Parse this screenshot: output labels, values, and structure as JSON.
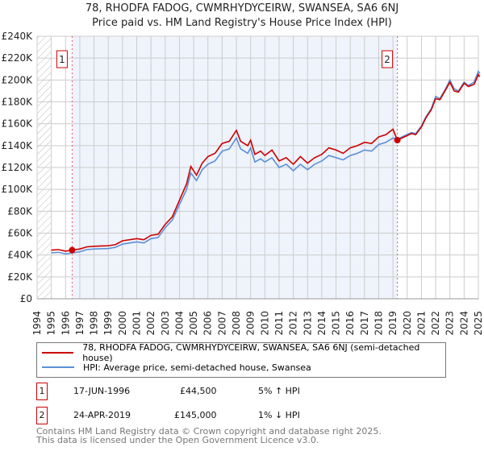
{
  "chart_data": {
    "type": "line",
    "title": "78, RHODFA FADOG, CWMRHYDYCEIRW, SWANSEA, SA6 6NJ",
    "subtitle": "Price paid vs. HM Land Registry's House Price Index (HPI)",
    "xlim": [
      1994,
      2025
    ],
    "ylim": [
      0,
      240000
    ],
    "x_ticks": [
      "1994",
      "1995",
      "1996",
      "1997",
      "1998",
      "1999",
      "2000",
      "2001",
      "2002",
      "2003",
      "2004",
      "2005",
      "2006",
      "2007",
      "2008",
      "2009",
      "2010",
      "2011",
      "2012",
      "2013",
      "2014",
      "2015",
      "2016",
      "2017",
      "2018",
      "2019",
      "2020",
      "2021",
      "2022",
      "2023",
      "2024",
      "2025"
    ],
    "y_ticks": [
      "£0",
      "£20K",
      "£40K",
      "£60K",
      "£80K",
      "£100K",
      "£120K",
      "£140K",
      "£160K",
      "£180K",
      "£200K",
      "£220K",
      "£240K"
    ],
    "grid": true,
    "series": [
      {
        "name": "78, RHODFA FADOG, CWMRHYDYCEIRW, SWANSEA, SA6 6NJ (semi-detached house)",
        "color": "#cc0000",
        "x": [
          1995,
          1995.5,
          1996,
          1996.46,
          1997,
          1997.5,
          1998,
          1999,
          1999.5,
          2000,
          2001,
          2001.5,
          2002,
          2002.5,
          2003,
          2003.5,
          2004,
          2004.5,
          2004.8,
          2005.2,
          2005.6,
          2006,
          2006.5,
          2007,
          2007.5,
          2008,
          2008.3,
          2008.8,
          2009,
          2009.3,
          2009.7,
          2010,
          2010.5,
          2011,
          2011.5,
          2012,
          2012.5,
          2013,
          2013.5,
          2014,
          2014.5,
          2015,
          2015.5,
          2016,
          2016.5,
          2017,
          2017.5,
          2018,
          2018.5,
          2019,
          2019.31,
          2019.8,
          2020.3,
          2020.6,
          2021,
          2021.3,
          2021.7,
          2022,
          2022.3,
          2022.7,
          2023,
          2023.3,
          2023.6,
          2024,
          2024.3,
          2024.7,
          2025,
          2025.1
        ],
        "y": [
          44500,
          45000,
          43500,
          44500,
          45500,
          47500,
          48000,
          48500,
          49500,
          53000,
          55000,
          54000,
          58000,
          59000,
          68000,
          75000,
          90000,
          105000,
          121000,
          113000,
          124000,
          130000,
          133000,
          142000,
          144000,
          154000,
          144000,
          140000,
          145000,
          132000,
          135000,
          131000,
          136000,
          126000,
          129000,
          123000,
          130000,
          124000,
          129000,
          132000,
          138000,
          136000,
          133000,
          138000,
          140000,
          143000,
          142000,
          148000,
          150000,
          155000,
          145000,
          148000,
          151000,
          150000,
          157000,
          165000,
          173000,
          183000,
          182000,
          191000,
          198000,
          190000,
          189000,
          197000,
          194000,
          196000,
          205000,
          203000
        ]
      },
      {
        "name": "HPI: Average price, semi-detached house, Swansea",
        "color": "#5b8fd6",
        "x": [
          1995,
          1995.5,
          1996,
          1996.5,
          1997,
          1997.5,
          1998,
          1999,
          1999.5,
          2000,
          2001,
          2001.5,
          2002,
          2002.5,
          2003,
          2003.5,
          2004,
          2004.5,
          2004.8,
          2005.2,
          2005.6,
          2006,
          2006.5,
          2007,
          2007.5,
          2008,
          2008.3,
          2008.8,
          2009,
          2009.3,
          2009.7,
          2010,
          2010.5,
          2011,
          2011.5,
          2012,
          2012.5,
          2013,
          2013.5,
          2014,
          2014.5,
          2015,
          2015.5,
          2016,
          2016.5,
          2017,
          2017.5,
          2018,
          2018.5,
          2019,
          2019.31,
          2019.8,
          2020.3,
          2020.6,
          2021,
          2021.3,
          2021.7,
          2022,
          2022.3,
          2022.7,
          2023,
          2023.3,
          2023.6,
          2024,
          2024.3,
          2024.7,
          2025,
          2025.1
        ],
        "y": [
          42000,
          42500,
          41000,
          42000,
          43000,
          45000,
          45500,
          46000,
          47000,
          50000,
          52000,
          51000,
          55000,
          56000,
          65000,
          72000,
          86000,
          100000,
          115000,
          108000,
          118000,
          123000,
          126000,
          135000,
          137000,
          147000,
          137000,
          133000,
          138000,
          125000,
          128000,
          125000,
          129000,
          120000,
          123000,
          117000,
          123000,
          118000,
          123000,
          126000,
          131000,
          129000,
          127000,
          131000,
          133000,
          136000,
          135000,
          141000,
          143000,
          147000,
          146000,
          149000,
          152000,
          151000,
          158000,
          166000,
          174000,
          185000,
          183000,
          192000,
          200000,
          192000,
          190000,
          198000,
          195000,
          198000,
          208000,
          206000
        ]
      }
    ],
    "annotations": [
      {
        "label": "1",
        "x": 1996.46,
        "y": 44500
      },
      {
        "label": "2",
        "x": 2019.31,
        "y": 145000
      }
    ],
    "legend_placement": "below"
  },
  "sales": [
    {
      "num": "1",
      "date": "17-JUN-1996",
      "price": "£44,500",
      "hpi": "5% ↑ HPI"
    },
    {
      "num": "2",
      "date": "24-APR-2019",
      "price": "£145,000",
      "hpi": "1% ↓ HPI"
    }
  ],
  "footer": {
    "line1": "Contains HM Land Registry data © Crown copyright and database right 2025.",
    "line2": "This data is licensed under the Open Government Licence v3.0."
  }
}
